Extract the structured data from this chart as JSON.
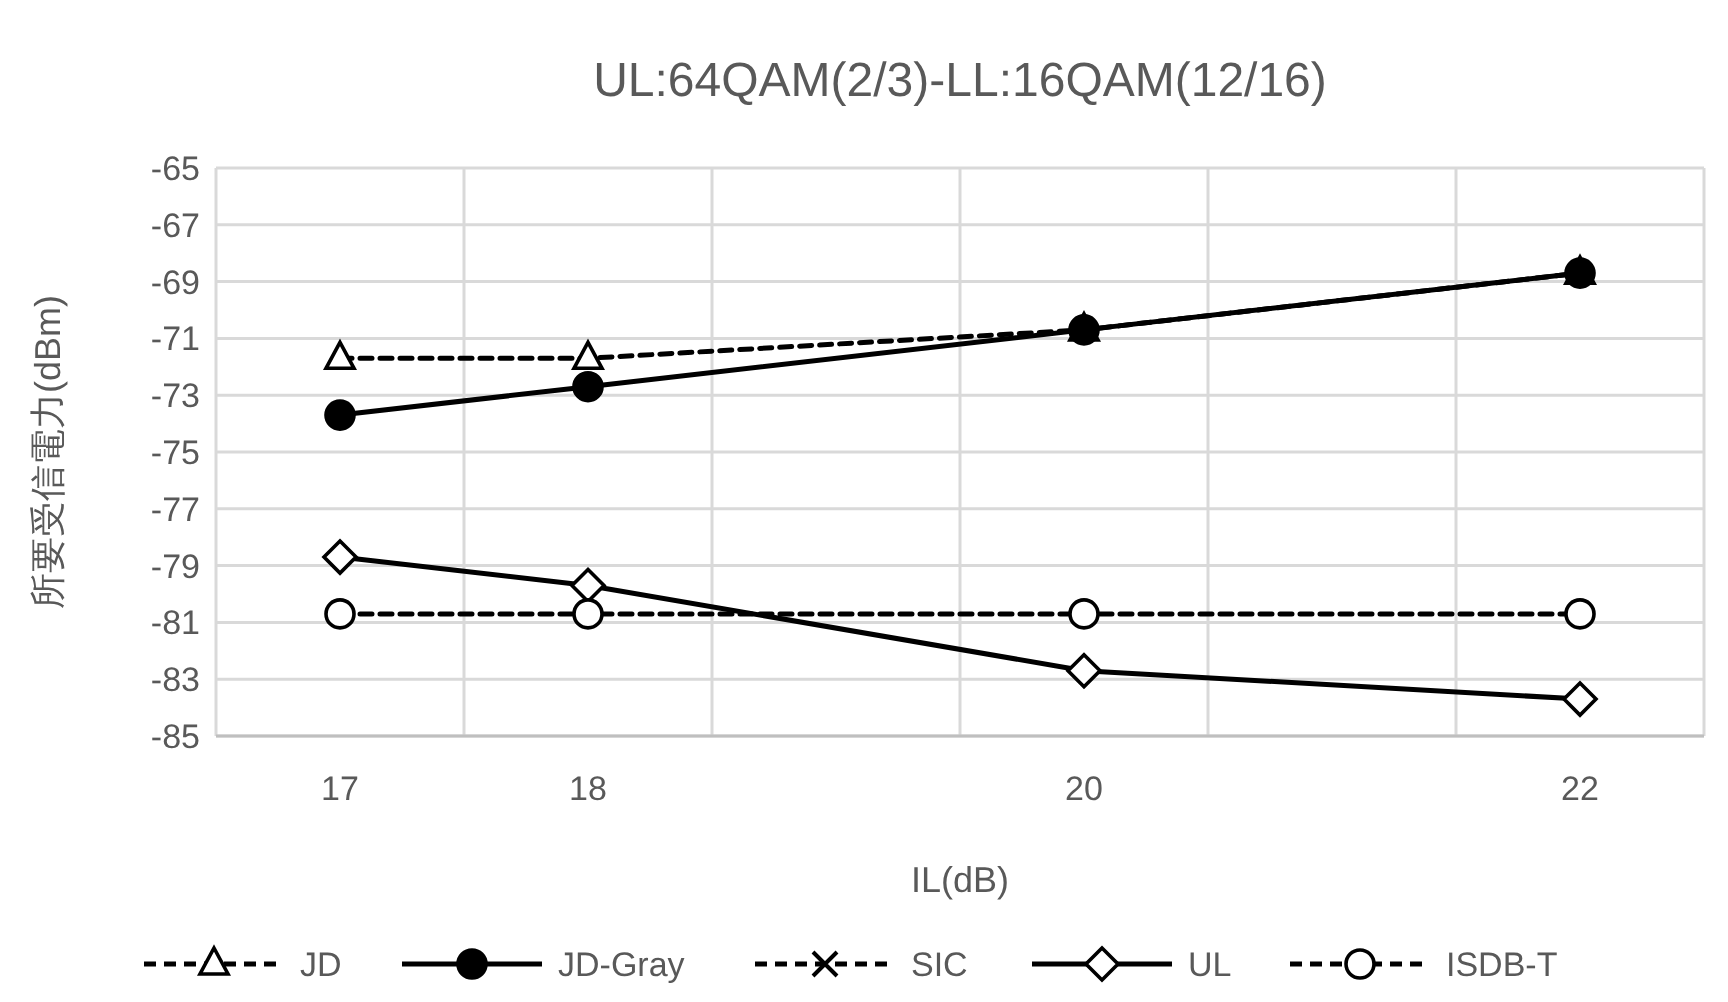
{
  "chart_data": {
    "type": "line",
    "title": "UL:64QAM(2/3)-LL:16QAM(12/16)",
    "xlabel": "IL(dB)",
    "ylabel": "所要受信電力(dBm)",
    "x": [
      17,
      18,
      20,
      22
    ],
    "xlim": [
      16.5,
      22.5
    ],
    "xticks": [
      17,
      18,
      20,
      22,
      {
        "value": 17.5,
        "label": null
      },
      {
        "value": 18.5,
        "label": null
      },
      {
        "value": 19.5,
        "label": null
      },
      {
        "value": 20.5,
        "label": null
      },
      {
        "value": 21.5,
        "label": null
      }
    ],
    "ylim": [
      -85,
      -65
    ],
    "yticks": [
      -85,
      -83,
      -81,
      -79,
      -77,
      -75,
      -73,
      -71,
      -69,
      -67,
      -65
    ],
    "grid": true,
    "legend": "bottom",
    "series": [
      {
        "name": "JD",
        "color": "#000000",
        "marker": "triangle",
        "line_style": "dashed",
        "values": [
          -71.7,
          -71.7,
          -70.7,
          -68.7
        ]
      },
      {
        "name": "JD-Gray",
        "color": "#000000",
        "marker": "circle",
        "line_style": "solid",
        "values": [
          -73.7,
          -72.7,
          -70.7,
          -68.7
        ]
      },
      {
        "name": "SIC",
        "color": "#000000",
        "marker": "cross",
        "line_style": "dashed",
        "values": [
          null,
          null,
          null,
          null
        ]
      },
      {
        "name": "UL",
        "color": "#000000",
        "marker": "diamond",
        "line_style": "solid",
        "values": [
          -78.7,
          -79.7,
          -82.7,
          -83.7
        ]
      },
      {
        "name": "ISDB-T",
        "color": "#000000",
        "marker": "circle",
        "line_style": "dashed",
        "values": [
          -80.7,
          -80.7,
          -80.7,
          -80.7
        ]
      }
    ]
  }
}
